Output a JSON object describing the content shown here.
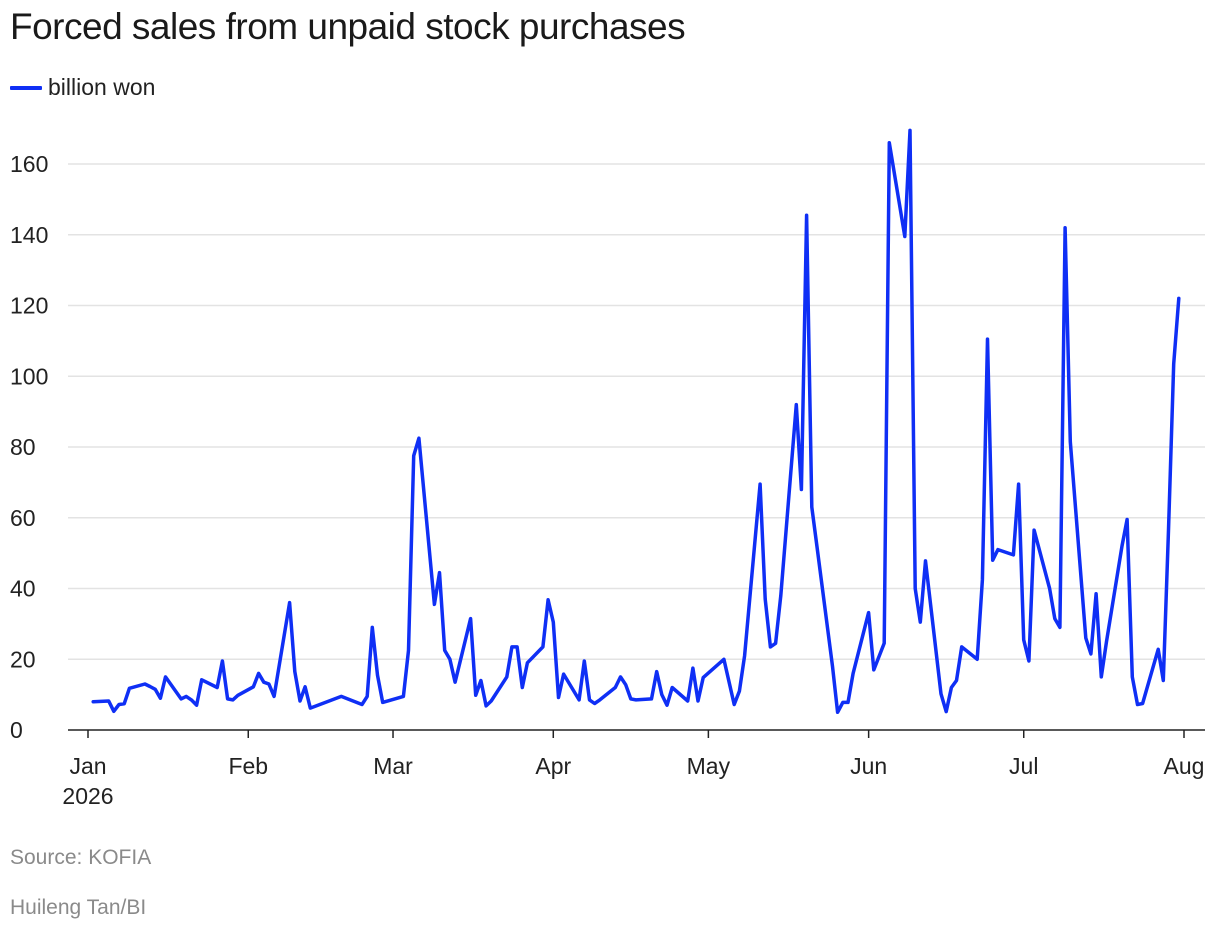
{
  "chart_data": {
    "type": "line",
    "title": "Forced sales from unpaid stock purchases",
    "legend_position": "top-left",
    "grid": true,
    "color": "#0f2ff5",
    "xlim": [
      "2026-01-01",
      "2026-08-06"
    ],
    "ylim": [
      0,
      170
    ],
    "y_ticks": [
      0,
      20,
      40,
      60,
      80,
      100,
      120,
      140,
      160
    ],
    "x_ticks": [
      {
        "date": "2026-01-01",
        "label": "Jan",
        "sublabel": "2026"
      },
      {
        "date": "2026-02-01",
        "label": "Feb",
        "sublabel": ""
      },
      {
        "date": "2026-03-01",
        "label": "Mar",
        "sublabel": ""
      },
      {
        "date": "2026-04-01",
        "label": "Apr",
        "sublabel": ""
      },
      {
        "date": "2026-05-01",
        "label": "May",
        "sublabel": ""
      },
      {
        "date": "2026-06-01",
        "label": "Jun",
        "sublabel": ""
      },
      {
        "date": "2026-07-01",
        "label": "Jul",
        "sublabel": ""
      },
      {
        "date": "2026-08-01",
        "label": "Aug",
        "sublabel": ""
      }
    ],
    "series": [
      {
        "name": "billion won",
        "points": [
          [
            "2026-01-02",
            8
          ],
          [
            "2026-01-05",
            8.2
          ],
          [
            "2026-01-06",
            5.3
          ],
          [
            "2026-01-07",
            7.2
          ],
          [
            "2026-01-08",
            7.4
          ],
          [
            "2026-01-09",
            11.8
          ],
          [
            "2026-01-12",
            13
          ],
          [
            "2026-01-13",
            12.3
          ],
          [
            "2026-01-14",
            11.5
          ],
          [
            "2026-01-15",
            9
          ],
          [
            "2026-01-16",
            15
          ],
          [
            "2026-01-19",
            8.8
          ],
          [
            "2026-01-20",
            9.5
          ],
          [
            "2026-01-21",
            8.5
          ],
          [
            "2026-01-22",
            7
          ],
          [
            "2026-01-23",
            14.2
          ],
          [
            "2026-01-26",
            12
          ],
          [
            "2026-01-27",
            19.5
          ],
          [
            "2026-01-28",
            8.8
          ],
          [
            "2026-01-29",
            8.5
          ],
          [
            "2026-01-30",
            9.8
          ],
          [
            "2026-02-02",
            12.2
          ],
          [
            "2026-02-03",
            16
          ],
          [
            "2026-02-04",
            13.5
          ],
          [
            "2026-02-05",
            13
          ],
          [
            "2026-02-06",
            9.5
          ],
          [
            "2026-02-09",
            36
          ],
          [
            "2026-02-10",
            16.5
          ],
          [
            "2026-02-11",
            8.2
          ],
          [
            "2026-02-12",
            12.2
          ],
          [
            "2026-02-13",
            6.2
          ],
          [
            "2026-02-19",
            9.5
          ],
          [
            "2026-02-23",
            7.2
          ],
          [
            "2026-02-24",
            9.5
          ],
          [
            "2026-02-25",
            29
          ],
          [
            "2026-02-26",
            15.5
          ],
          [
            "2026-02-27",
            7.8
          ],
          [
            "2026-03-03",
            9.5
          ],
          [
            "2026-03-04",
            22.5
          ],
          [
            "2026-03-05",
            77.5
          ],
          [
            "2026-03-06",
            82.5
          ],
          [
            "2026-03-09",
            35.5
          ],
          [
            "2026-03-10",
            44.5
          ],
          [
            "2026-03-11",
            22.5
          ],
          [
            "2026-03-12",
            20
          ],
          [
            "2026-03-13",
            13.5
          ],
          [
            "2026-03-16",
            31.5
          ],
          [
            "2026-03-17",
            9.8
          ],
          [
            "2026-03-18",
            14
          ],
          [
            "2026-03-19",
            6.8
          ],
          [
            "2026-03-20",
            8.2
          ],
          [
            "2026-03-23",
            15
          ],
          [
            "2026-03-24",
            23.5
          ],
          [
            "2026-03-25",
            23.5
          ],
          [
            "2026-03-26",
            12
          ],
          [
            "2026-03-27",
            19
          ],
          [
            "2026-03-30",
            23.5
          ],
          [
            "2026-03-31",
            36.8
          ],
          [
            "2026-04-01",
            30.5
          ],
          [
            "2026-04-02",
            9.2
          ],
          [
            "2026-04-03",
            15.8
          ],
          [
            "2026-04-06",
            8.5
          ],
          [
            "2026-04-07",
            19.5
          ],
          [
            "2026-04-08",
            8.5
          ],
          [
            "2026-04-09",
            7.5
          ],
          [
            "2026-04-10",
            8.5
          ],
          [
            "2026-04-13",
            12
          ],
          [
            "2026-04-14",
            15
          ],
          [
            "2026-04-15",
            12.8
          ],
          [
            "2026-04-16",
            8.8
          ],
          [
            "2026-04-17",
            8.5
          ],
          [
            "2026-04-20",
            8.8
          ],
          [
            "2026-04-21",
            16.5
          ],
          [
            "2026-04-22",
            10
          ],
          [
            "2026-04-23",
            7
          ],
          [
            "2026-04-24",
            12
          ],
          [
            "2026-04-27",
            8.2
          ],
          [
            "2026-04-28",
            17.5
          ],
          [
            "2026-04-29",
            8.2
          ],
          [
            "2026-04-30",
            14.8
          ],
          [
            "2026-05-04",
            20
          ],
          [
            "2026-05-06",
            7.2
          ],
          [
            "2026-05-07",
            11
          ],
          [
            "2026-05-08",
            21
          ],
          [
            "2026-05-11",
            69.5
          ],
          [
            "2026-05-12",
            37
          ],
          [
            "2026-05-13",
            23.5
          ],
          [
            "2026-05-14",
            24.5
          ],
          [
            "2026-05-15",
            38
          ],
          [
            "2026-05-18",
            92
          ],
          [
            "2026-05-19",
            68
          ],
          [
            "2026-05-20",
            145.5
          ],
          [
            "2026-05-21",
            63
          ],
          [
            "2026-05-22",
            52
          ],
          [
            "2026-05-25",
            18
          ],
          [
            "2026-05-26",
            5
          ],
          [
            "2026-05-27",
            7.8
          ],
          [
            "2026-05-28",
            7.8
          ],
          [
            "2026-05-29",
            16
          ],
          [
            "2026-06-01",
            33.2
          ],
          [
            "2026-06-02",
            17
          ],
          [
            "2026-06-04",
            24.5
          ],
          [
            "2026-06-05",
            166
          ],
          [
            "2026-06-08",
            139.5
          ],
          [
            "2026-06-09",
            169.5
          ],
          [
            "2026-06-10",
            40
          ],
          [
            "2026-06-11",
            30.5
          ],
          [
            "2026-06-12",
            47.8
          ],
          [
            "2026-06-15",
            10.2
          ],
          [
            "2026-06-16",
            5.2
          ],
          [
            "2026-06-17",
            12
          ],
          [
            "2026-06-18",
            14
          ],
          [
            "2026-06-19",
            23.5
          ],
          [
            "2026-06-22",
            20
          ],
          [
            "2026-06-23",
            42.5
          ],
          [
            "2026-06-24",
            110.5
          ],
          [
            "2026-06-25",
            48
          ],
          [
            "2026-06-26",
            51
          ],
          [
            "2026-06-29",
            49.5
          ],
          [
            "2026-06-30",
            69.5
          ],
          [
            "2026-07-01",
            25.5
          ],
          [
            "2026-07-02",
            19.5
          ],
          [
            "2026-07-03",
            56.5
          ],
          [
            "2026-07-06",
            40
          ],
          [
            "2026-07-07",
            31.5
          ],
          [
            "2026-07-08",
            29
          ],
          [
            "2026-07-09",
            142
          ],
          [
            "2026-07-10",
            81.5
          ],
          [
            "2026-07-13",
            26
          ],
          [
            "2026-07-14",
            21.5
          ],
          [
            "2026-07-15",
            38.5
          ],
          [
            "2026-07-16",
            15
          ],
          [
            "2026-07-17",
            25
          ],
          [
            "2026-07-20",
            52
          ],
          [
            "2026-07-21",
            59.5
          ],
          [
            "2026-07-22",
            15
          ],
          [
            "2026-07-23",
            7.2
          ],
          [
            "2026-07-24",
            7.5
          ],
          [
            "2026-07-27",
            22.8
          ],
          [
            "2026-07-28",
            14
          ],
          [
            "2026-07-29",
            56.5
          ],
          [
            "2026-07-30",
            103.5
          ],
          [
            "2026-07-31",
            122
          ]
        ]
      }
    ]
  },
  "footer": {
    "source": "Source: KOFIA",
    "credit": "Huileng Tan/BI"
  }
}
